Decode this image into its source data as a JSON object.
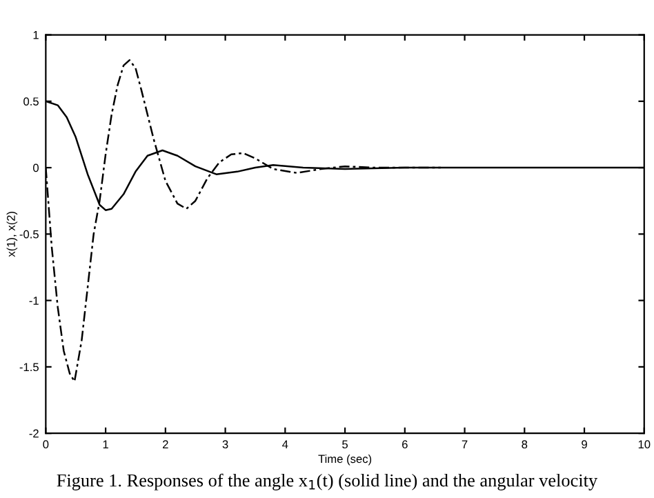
{
  "chart_data": {
    "type": "line",
    "xlabel": "Time (sec)",
    "ylabel": "x(1), x(2)",
    "xlim": [
      0,
      10
    ],
    "xticks": [
      0,
      1,
      2,
      3,
      4,
      5,
      6,
      7,
      8,
      9,
      10
    ],
    "ylim": [
      -2,
      1
    ],
    "yticks": [
      -2,
      -1.5,
      -1,
      -0.5,
      0,
      0.5,
      1
    ],
    "grid": false,
    "series": [
      {
        "color": "#000000",
        "line_style": "solid",
        "x": [
          0,
          0.2,
          0.35,
          0.5,
          0.7,
          0.9,
          1.0,
          1.1,
          1.3,
          1.5,
          1.7,
          1.95,
          2.2,
          2.5,
          2.85,
          3.2,
          3.5,
          3.8,
          4.3,
          5,
          6,
          10
        ],
        "values": [
          0.5,
          0.47,
          0.38,
          0.23,
          -0.05,
          -0.28,
          -0.32,
          -0.31,
          -0.2,
          -0.03,
          0.09,
          0.13,
          0.09,
          0.01,
          -0.05,
          -0.03,
          0.0,
          0.02,
          0.0,
          -0.01,
          0,
          0
        ]
      },
      {
        "color": "#000000",
        "line_style": "dashed",
        "x": [
          0,
          0.1,
          0.2,
          0.3,
          0.4,
          0.48,
          0.6,
          0.7,
          0.8,
          0.9,
          1.0,
          1.1,
          1.2,
          1.3,
          1.4,
          1.5,
          1.6,
          1.8,
          2.0,
          2.2,
          2.35,
          2.5,
          2.7,
          2.9,
          3.1,
          3.3,
          3.5,
          3.8,
          4.2,
          4.6,
          5.0,
          5.5,
          6.6
        ],
        "values": [
          0,
          -0.6,
          -1.05,
          -1.38,
          -1.55,
          -1.61,
          -1.3,
          -0.9,
          -0.5,
          -0.25,
          0.1,
          0.4,
          0.62,
          0.77,
          0.81,
          0.75,
          0.58,
          0.22,
          -0.1,
          -0.27,
          -0.31,
          -0.25,
          -0.08,
          0.04,
          0.1,
          0.11,
          0.07,
          -0.01,
          -0.04,
          -0.01,
          0.01,
          0.0,
          0.0
        ]
      }
    ],
    "annotations": [
      "Figure 1. Responses of the angle x$_{1}$(t) (solid line) and the angular velocity"
    ]
  }
}
